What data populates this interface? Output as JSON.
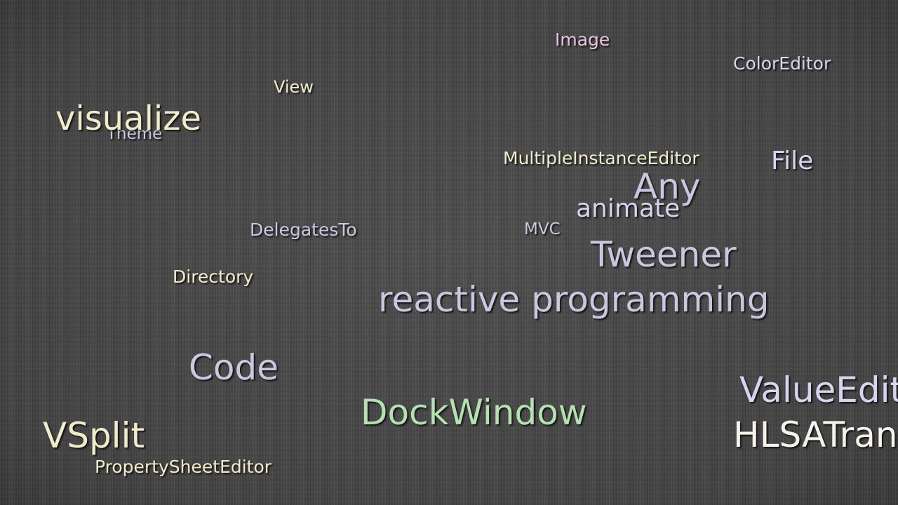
{
  "tag_cloud": {
    "words": [
      "Image",
      "ColorEditor",
      "View",
      "visualize",
      "Theme",
      "MultipleInstanceEditor",
      "File",
      "Any",
      "animate",
      "DelegatesTo",
      "MVC",
      "Tweener",
      "Directory",
      "reactive programming",
      "Code",
      "ValueEditor",
      "DockWindow",
      "HLSATransform",
      "VSplit",
      "PropertySheetEditor"
    ]
  }
}
